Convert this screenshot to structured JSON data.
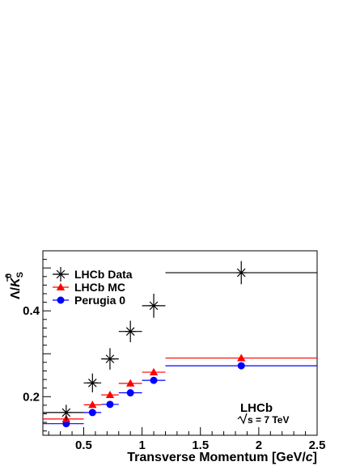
{
  "chart_data": {
    "type": "scatter",
    "xlabel_main": "Transverse Momentum [GeV/",
    "xlabel_italic": "c",
    "xlabel_end": "]",
    "ylabel": "Λ̄/K⁰S",
    "xlim": [
      0.15,
      2.5
    ],
    "ylim": [
      0.11,
      0.54
    ],
    "x_ticks": [
      {
        "value": 0.5,
        "label": "0.5"
      },
      {
        "value": 1.0,
        "label": "1"
      },
      {
        "value": 1.5,
        "label": "1.5"
      },
      {
        "value": 2.0,
        "label": "2"
      },
      {
        "value": 2.5,
        "label": "2.5"
      }
    ],
    "y_ticks": [
      {
        "value": 0.2,
        "label": "0.2"
      },
      {
        "value": 0.4,
        "label": "0.4"
      }
    ],
    "annotations": {
      "experiment": "LHCb",
      "energy": "s = 7 TeV"
    },
    "legend_position": "top-left",
    "series": [
      {
        "name": "LHCb Data",
        "color": "#000000",
        "marker": "asterisk",
        "points": [
          {
            "x": 0.35,
            "xlo": 0.15,
            "xhi": 0.5,
            "y": 0.163,
            "yerr": 0.018
          },
          {
            "x": 0.575,
            "xlo": 0.5,
            "xhi": 0.65,
            "y": 0.232,
            "yerr": 0.022
          },
          {
            "x": 0.725,
            "xlo": 0.65,
            "xhi": 0.8,
            "y": 0.288,
            "yerr": 0.025
          },
          {
            "x": 0.9,
            "xlo": 0.8,
            "xhi": 1.0,
            "y": 0.352,
            "yerr": 0.025
          },
          {
            "x": 1.1,
            "xlo": 1.0,
            "xhi": 1.2,
            "y": 0.412,
            "yerr": 0.028
          },
          {
            "x": 1.85,
            "xlo": 1.2,
            "xhi": 2.5,
            "y": 0.489,
            "yerr": 0.027
          }
        ]
      },
      {
        "name": "LHCb MC",
        "color": "#ff0000",
        "marker": "triangle",
        "points": [
          {
            "x": 0.35,
            "xlo": 0.15,
            "xhi": 0.5,
            "y": 0.148
          },
          {
            "x": 0.575,
            "xlo": 0.5,
            "xhi": 0.65,
            "y": 0.181
          },
          {
            "x": 0.725,
            "xlo": 0.65,
            "xhi": 0.8,
            "y": 0.204
          },
          {
            "x": 0.9,
            "xlo": 0.8,
            "xhi": 1.0,
            "y": 0.231
          },
          {
            "x": 1.1,
            "xlo": 1.0,
            "xhi": 1.2,
            "y": 0.257
          },
          {
            "x": 1.85,
            "xlo": 1.2,
            "xhi": 2.5,
            "y": 0.29
          }
        ]
      },
      {
        "name": "Perugia 0",
        "color": "#0000ff",
        "marker": "circle",
        "points": [
          {
            "x": 0.35,
            "xlo": 0.15,
            "xhi": 0.5,
            "y": 0.137
          },
          {
            "x": 0.575,
            "xlo": 0.5,
            "xhi": 0.65,
            "y": 0.163
          },
          {
            "x": 0.725,
            "xlo": 0.65,
            "xhi": 0.8,
            "y": 0.182
          },
          {
            "x": 0.9,
            "xlo": 0.8,
            "xhi": 1.0,
            "y": 0.209
          },
          {
            "x": 1.1,
            "xlo": 1.0,
            "xhi": 1.2,
            "y": 0.238
          },
          {
            "x": 1.85,
            "xlo": 1.2,
            "xhi": 2.5,
            "y": 0.272
          }
        ]
      }
    ]
  }
}
